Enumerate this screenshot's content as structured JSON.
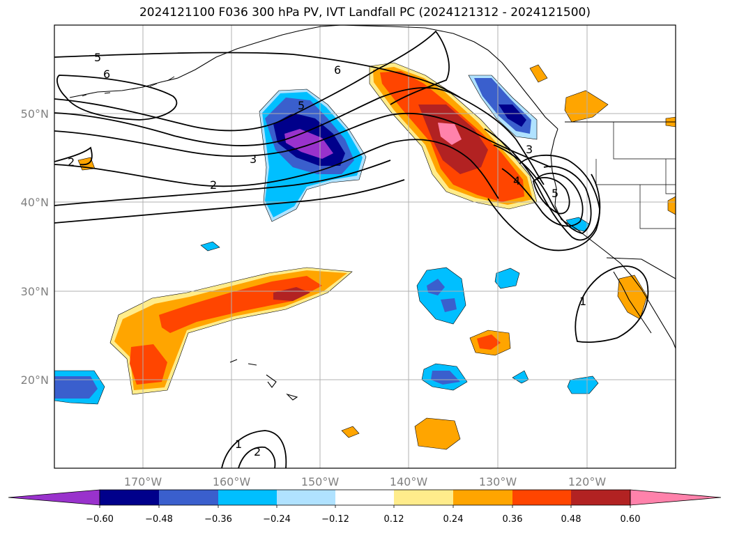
{
  "title": "2024121100 F036 300 hPa PV, IVT Landfall PC (2024121312 - 2024121500)",
  "lon_labels": [
    "170°W",
    "160°W",
    "150°W",
    "140°W",
    "130°W",
    "120°W"
  ],
  "lat_labels": [
    "50°N",
    "40°N",
    "30°N",
    "20°N"
  ],
  "colorbar": {
    "tick_labels": [
      "−0.60",
      "−0.48",
      "−0.36",
      "−0.24",
      "−0.12",
      "0.12",
      "0.24",
      "0.36",
      "0.48",
      "0.60"
    ],
    "colors": [
      "#9932cc",
      "#00008b",
      "#3a5fcd",
      "#00bfff",
      "#b0e2ff",
      "#ffffff",
      "#ffec8b",
      "#ffa500",
      "#ff4500",
      "#b22222",
      "#ff82ab"
    ]
  },
  "pv_contour_labels": [
    "5",
    "6",
    "6",
    "5",
    "3",
    "2",
    "2",
    "3",
    "4",
    "5",
    "1",
    "1",
    "2"
  ],
  "colors": {
    "contour": "#000000",
    "grid": "#b0b0b0",
    "coast": "#000000"
  }
}
